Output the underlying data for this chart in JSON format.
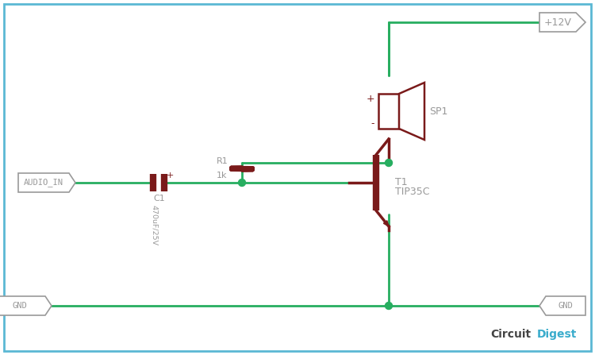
{
  "bg_color": "#ffffff",
  "border_color": "#5bb8d4",
  "wire_color": "#27ae60",
  "component_color": "#7a1a1a",
  "label_color": "#999999",
  "junction_color": "#27ae60",
  "audio_in_label": "AUDIO_IN",
  "gnd_left_label": "GND",
  "gnd_right_label": "GND",
  "vcc_label": "+12V",
  "c1_label": "C1",
  "c1_value": "470uF/25V",
  "r1_label": "R1",
  "r1_value": "1k",
  "t1_label": "T1",
  "t1_value": "TIP35C",
  "sp1_label": "SP1",
  "cd_text1": "Circuit",
  "cd_text2": "Digest",
  "figw": 7.5,
  "figh": 4.47,
  "dpi": 100
}
